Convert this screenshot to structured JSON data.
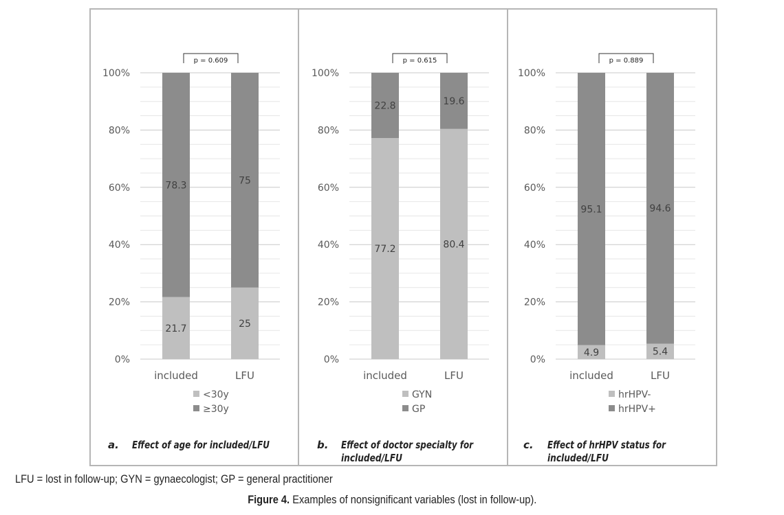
{
  "chart_data": [
    {
      "type": "bar",
      "stacked": true,
      "percent_stacked": true,
      "categories": [
        "included",
        "LFU"
      ],
      "series": [
        {
          "name": "<30y",
          "values": [
            21.7,
            25
          ],
          "color": "#bfbfbf"
        },
        {
          "name": "≥30y",
          "values": [
            78.3,
            75
          ],
          "color": "#8c8c8c"
        }
      ],
      "ylim": [
        0,
        100
      ],
      "yticks": [
        "0%",
        "20%",
        "40%",
        "60%",
        "80%",
        "100%"
      ],
      "pvalue": "p = 0.609",
      "caption_letter": "a.",
      "caption_text": "Effect of age for included/LFU",
      "legend_position": "bottom",
      "grid": true
    },
    {
      "type": "bar",
      "stacked": true,
      "percent_stacked": true,
      "categories": [
        "included",
        "LFU"
      ],
      "series": [
        {
          "name": "GYN",
          "values": [
            77.2,
            80.4
          ],
          "color": "#bfbfbf"
        },
        {
          "name": "GP",
          "values": [
            22.8,
            19.6
          ],
          "color": "#8c8c8c"
        }
      ],
      "ylim": [
        0,
        100
      ],
      "yticks": [
        "0%",
        "20%",
        "40%",
        "60%",
        "80%",
        "100%"
      ],
      "pvalue": "p = 0.615",
      "caption_letter": "b.",
      "caption_text": "Effect of doctor specialty for included/LFU",
      "legend_position": "bottom",
      "grid": true
    },
    {
      "type": "bar",
      "stacked": true,
      "percent_stacked": true,
      "categories": [
        "included",
        "LFU"
      ],
      "series": [
        {
          "name": "hrHPV-",
          "values": [
            4.9,
            5.4
          ],
          "color": "#bfbfbf"
        },
        {
          "name": "hrHPV+",
          "values": [
            95.1,
            94.6
          ],
          "color": "#8c8c8c"
        }
      ],
      "ylim": [
        0,
        100
      ],
      "yticks": [
        "0%",
        "20%",
        "40%",
        "60%",
        "80%",
        "100%"
      ],
      "pvalue": "p = 0.889",
      "caption_letter": "c.",
      "caption_text": "Effect of hrHPV status for included/LFU",
      "legend_position": "bottom",
      "grid": true
    }
  ],
  "footer": {
    "abbreviations": "LFU = lost in follow-up; GYN = gynaecologist; GP = general practitioner",
    "figure_label": "Figure 4.",
    "figure_text": " Examples of nonsignificant variables (lost in follow-up)."
  }
}
